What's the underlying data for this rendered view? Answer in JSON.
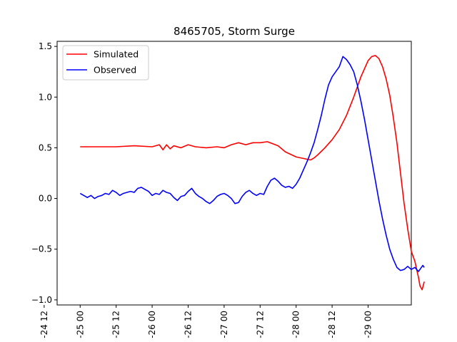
{
  "chart_data": {
    "type": "line",
    "title": "8465705, Storm Surge",
    "xlabel": "",
    "ylabel": "",
    "x_ticks": [
      "-24 12",
      "-25 00",
      "-25 12",
      "-26 00",
      "-26 12",
      "-27 00",
      "-27 12",
      "-28 00",
      "-28 12",
      "-29 00"
    ],
    "xlim": [
      -0.32,
      4.6
    ],
    "y_ticks": [
      -1.0,
      -0.5,
      0.0,
      0.5,
      1.0,
      1.5
    ],
    "y_tick_labels": [
      "−1.0",
      "−0.5",
      "0.0",
      "0.5",
      "1.0",
      "1.5"
    ],
    "ylim": [
      -1.05,
      1.55
    ],
    "grid": false,
    "legend_placement": "top-left",
    "series": [
      {
        "name": "Simulated",
        "color": "#ff0000",
        "x": [
          0,
          0.25,
          0.5,
          0.75,
          1.0,
          1.1,
          1.15,
          1.2,
          1.25,
          1.3,
          1.4,
          1.5,
          1.6,
          1.75,
          1.9,
          2.0,
          2.1,
          2.2,
          2.3,
          2.4,
          2.5,
          2.6,
          2.75,
          2.85,
          3.0,
          3.2,
          3.25,
          3.3,
          3.4,
          3.5,
          3.6,
          3.7,
          3.8,
          3.9,
          4.0,
          4.05,
          4.1,
          4.15,
          4.2,
          4.25,
          4.3,
          4.35,
          4.4,
          4.45,
          4.5,
          4.55,
          4.6,
          4.65,
          4.7,
          4.72,
          4.75,
          4.78
        ],
        "y": [
          0.51,
          0.51,
          0.51,
          0.52,
          0.51,
          0.53,
          0.48,
          0.53,
          0.49,
          0.52,
          0.5,
          0.53,
          0.51,
          0.5,
          0.51,
          0.5,
          0.53,
          0.55,
          0.53,
          0.55,
          0.55,
          0.56,
          0.52,
          0.46,
          0.41,
          0.38,
          0.4,
          0.43,
          0.5,
          0.58,
          0.68,
          0.82,
          1.0,
          1.2,
          1.36,
          1.4,
          1.41,
          1.38,
          1.3,
          1.18,
          1.02,
          0.8,
          0.55,
          0.25,
          -0.05,
          -0.3,
          -0.52,
          -0.62,
          -0.78,
          -0.86,
          -0.9,
          -0.82
        ]
      },
      {
        "name": "Observed",
        "color": "#0000ff",
        "x": [
          0,
          0.05,
          0.1,
          0.15,
          0.2,
          0.25,
          0.3,
          0.35,
          0.4,
          0.45,
          0.5,
          0.55,
          0.6,
          0.65,
          0.7,
          0.75,
          0.8,
          0.85,
          0.9,
          0.95,
          1.0,
          1.05,
          1.1,
          1.15,
          1.2,
          1.25,
          1.3,
          1.35,
          1.4,
          1.45,
          1.5,
          1.55,
          1.6,
          1.65,
          1.7,
          1.75,
          1.8,
          1.85,
          1.9,
          1.95,
          2.0,
          2.05,
          2.1,
          2.15,
          2.2,
          2.25,
          2.3,
          2.35,
          2.4,
          2.45,
          2.5,
          2.55,
          2.6,
          2.65,
          2.7,
          2.75,
          2.8,
          2.85,
          2.9,
          2.95,
          3.0,
          3.05,
          3.1,
          3.15,
          3.2,
          3.25,
          3.3,
          3.35,
          3.4,
          3.45,
          3.5,
          3.55,
          3.6,
          3.65,
          3.7,
          3.75,
          3.8,
          3.85,
          3.9,
          3.95,
          4.0,
          4.05,
          4.1,
          4.15,
          4.2,
          4.25,
          4.3,
          4.35,
          4.4,
          4.45,
          4.5,
          4.55,
          4.6,
          4.65,
          4.7,
          4.72,
          4.74,
          4.76,
          4.78
        ],
        "y": [
          0.05,
          0.03,
          0.01,
          0.03,
          0.0,
          0.02,
          0.03,
          0.05,
          0.04,
          0.08,
          0.06,
          0.03,
          0.05,
          0.06,
          0.07,
          0.06,
          0.1,
          0.11,
          0.09,
          0.07,
          0.03,
          0.05,
          0.04,
          0.08,
          0.06,
          0.05,
          0.01,
          -0.02,
          0.02,
          0.03,
          0.07,
          0.1,
          0.05,
          0.02,
          0.0,
          -0.03,
          -0.05,
          -0.02,
          0.02,
          0.04,
          0.05,
          0.03,
          0.0,
          -0.05,
          -0.04,
          0.02,
          0.06,
          0.08,
          0.05,
          0.03,
          0.05,
          0.04,
          0.12,
          0.18,
          0.2,
          0.17,
          0.13,
          0.11,
          0.12,
          0.1,
          0.14,
          0.2,
          0.28,
          0.36,
          0.45,
          0.55,
          0.68,
          0.82,
          0.98,
          1.12,
          1.2,
          1.25,
          1.3,
          1.4,
          1.37,
          1.32,
          1.25,
          1.12,
          0.96,
          0.78,
          0.58,
          0.38,
          0.18,
          -0.02,
          -0.2,
          -0.36,
          -0.5,
          -0.6,
          -0.68,
          -0.71,
          -0.7,
          -0.67,
          -0.7,
          -0.68,
          -0.72,
          -0.7,
          -0.68,
          -0.66,
          -0.68
        ]
      }
    ]
  }
}
